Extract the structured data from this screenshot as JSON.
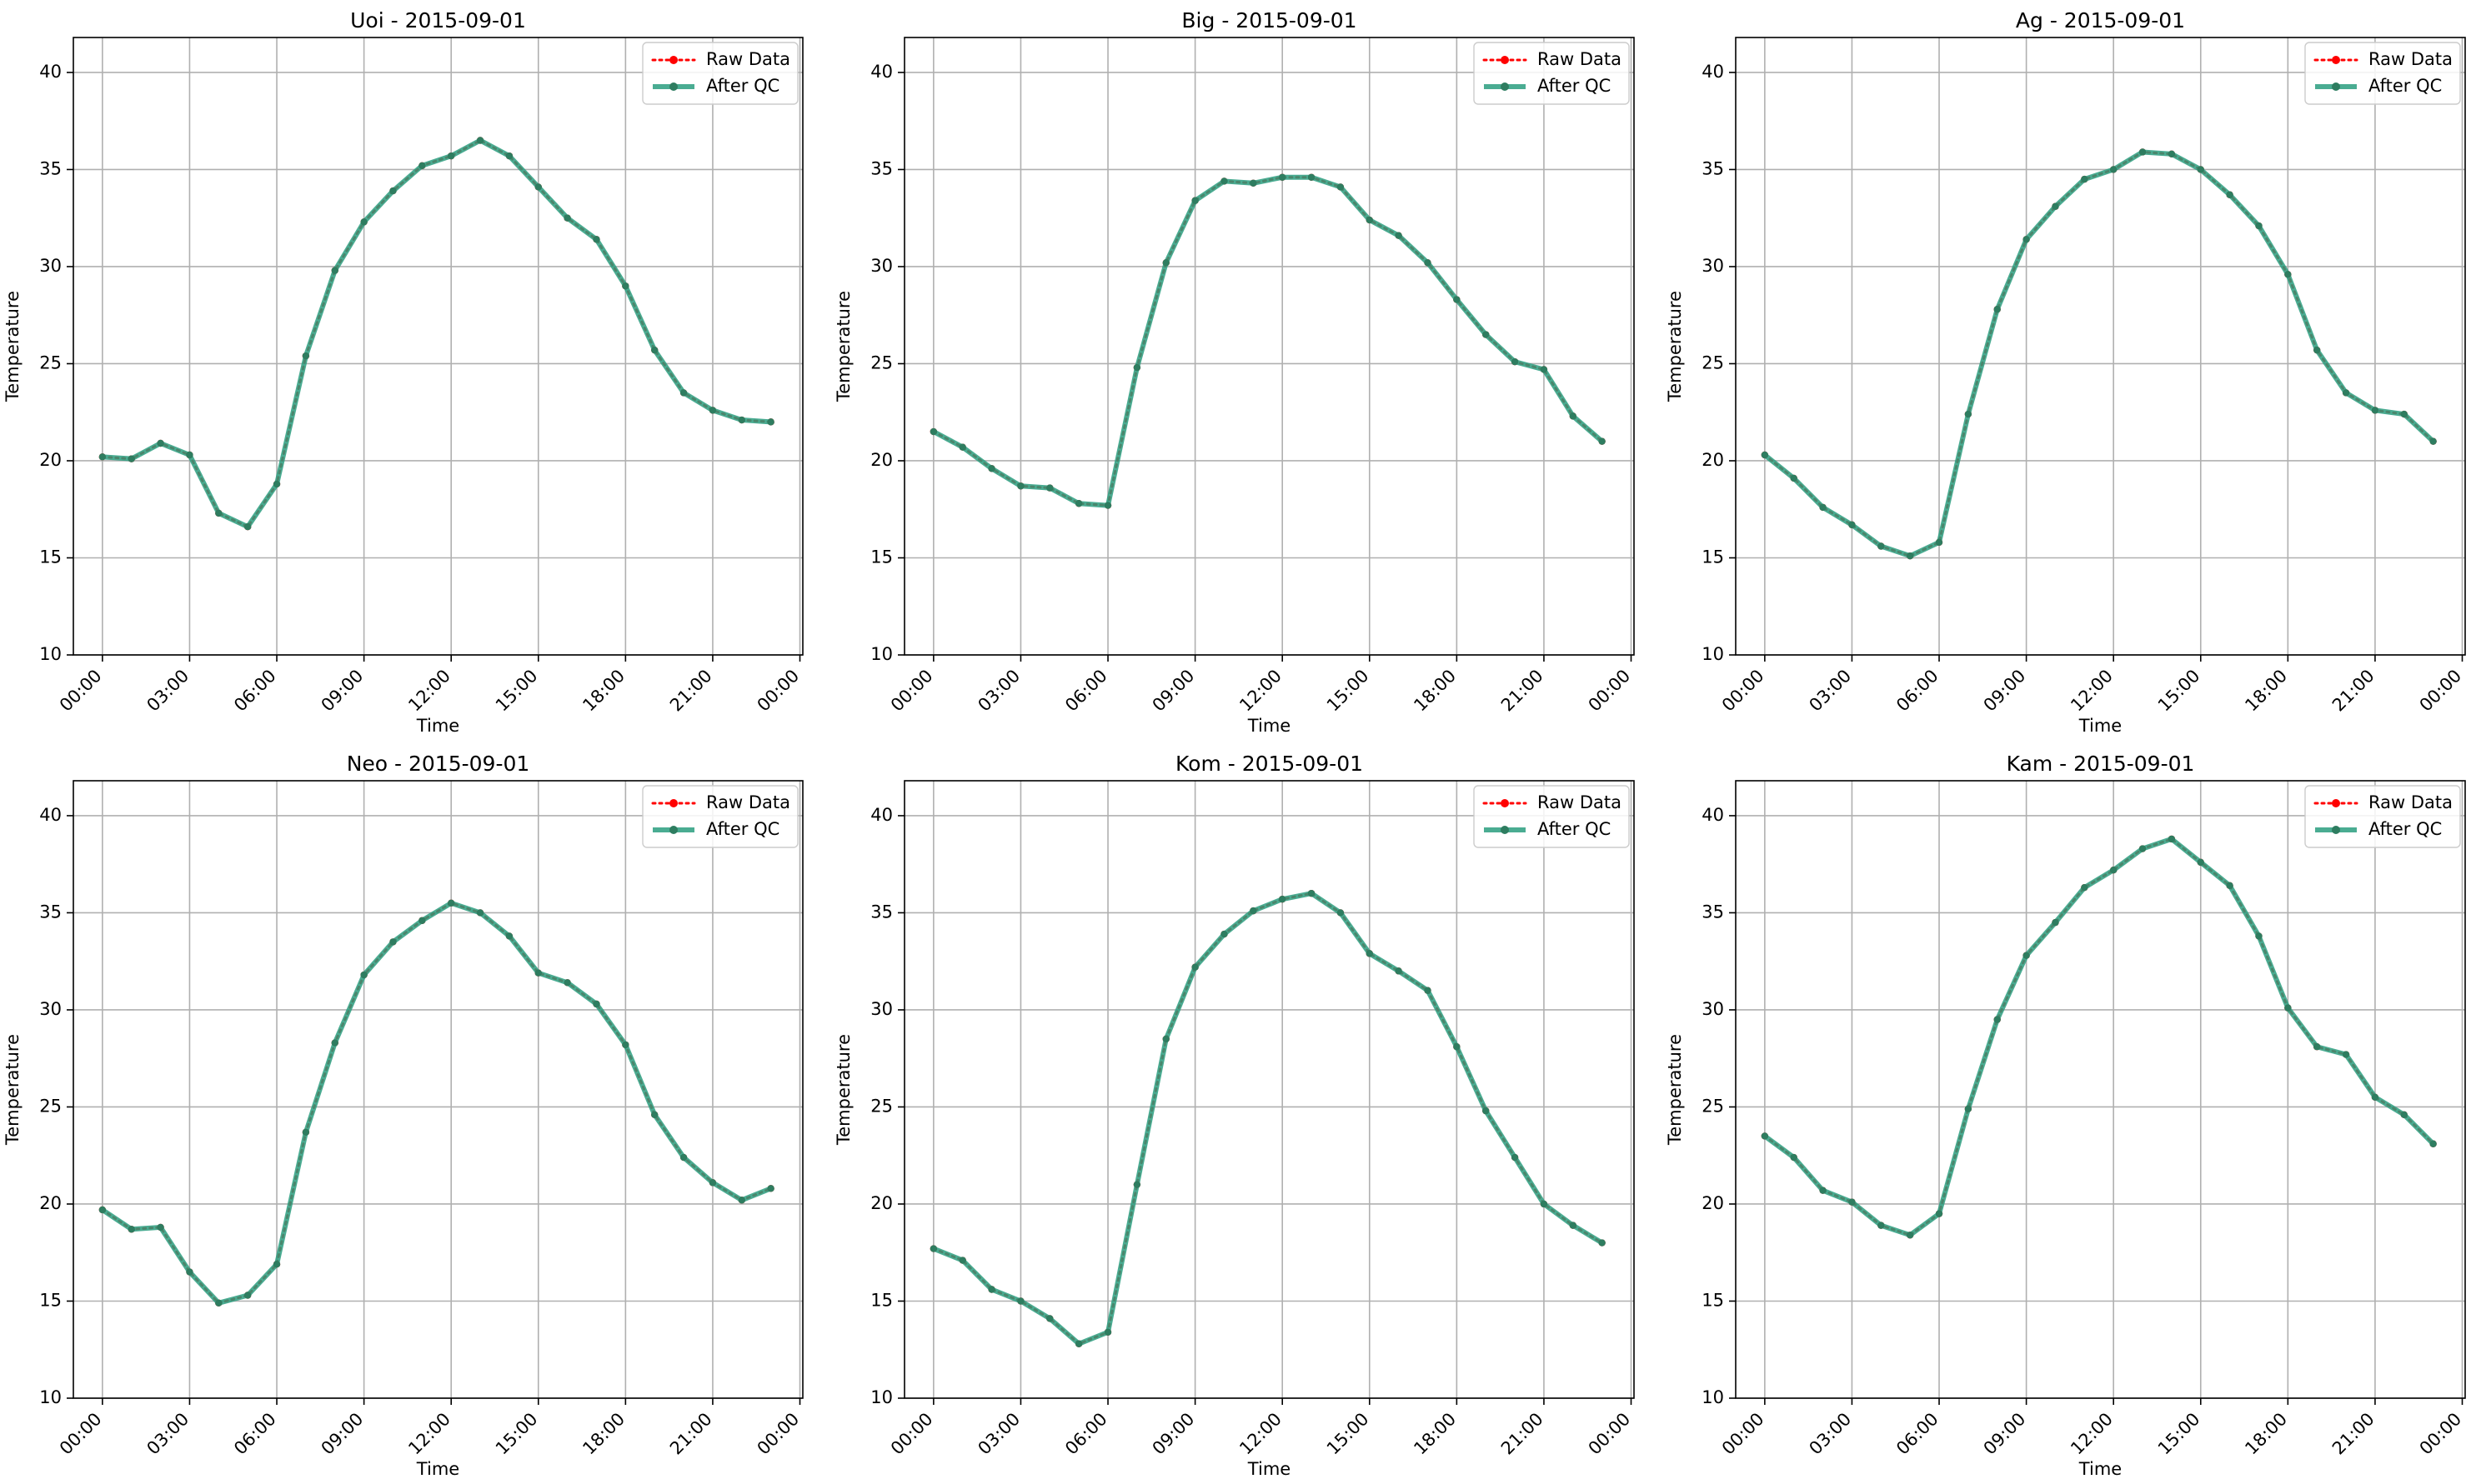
{
  "legend": {
    "raw_label": "Raw Data",
    "qc_label": "After QC"
  },
  "colors": {
    "raw": "#ff0000",
    "qc": "#2a9d7f",
    "qc_marker": "#2e7d60",
    "grid": "#b0b0b0",
    "axes": "#000000"
  },
  "chart_data": [
    {
      "type": "line",
      "title": "Uoi - 2015-09-01",
      "xlabel": "Time",
      "ylabel": "Temperature",
      "ylim": [
        10,
        41.8
      ],
      "yticks": [
        10,
        15,
        20,
        25,
        30,
        35,
        40
      ],
      "xlim": [
        -1,
        24.1
      ],
      "x": [
        0,
        1,
        2,
        3,
        4,
        5,
        6,
        7,
        8,
        9,
        10,
        11,
        12,
        13,
        14,
        15,
        16,
        17,
        18,
        19,
        20,
        21,
        22,
        23
      ],
      "xticks": [
        0,
        3,
        6,
        9,
        12,
        15,
        18,
        21,
        24
      ],
      "xticklabels": [
        "00:00",
        "03:00",
        "06:00",
        "09:00",
        "12:00",
        "15:00",
        "18:00",
        "21:00",
        "00:00"
      ],
      "grid": true,
      "legend_position": "top-right",
      "series": [
        {
          "name": "Raw Data",
          "values": [
            20.2,
            20.1,
            20.9,
            20.3,
            17.3,
            16.6,
            18.8,
            25.4,
            29.8,
            32.3,
            33.9,
            35.2,
            35.7,
            36.5,
            35.7,
            34.1,
            32.5,
            31.4,
            29.0,
            25.7,
            23.5,
            22.6,
            22.1,
            22.0
          ]
        },
        {
          "name": "After QC",
          "values": [
            20.2,
            20.1,
            20.9,
            20.3,
            17.3,
            16.6,
            18.8,
            25.4,
            29.8,
            32.3,
            33.9,
            35.2,
            35.7,
            36.5,
            35.7,
            34.1,
            32.5,
            31.4,
            29.0,
            25.7,
            23.5,
            22.6,
            22.1,
            22.0
          ]
        }
      ]
    },
    {
      "type": "line",
      "title": "Big - 2015-09-01",
      "xlabel": "Time",
      "ylabel": "Temperature",
      "ylim": [
        10,
        41.8
      ],
      "yticks": [
        10,
        15,
        20,
        25,
        30,
        35,
        40
      ],
      "xlim": [
        -1,
        24.1
      ],
      "x": [
        0,
        1,
        2,
        3,
        4,
        5,
        6,
        7,
        8,
        9,
        10,
        11,
        12,
        13,
        14,
        15,
        16,
        17,
        18,
        19,
        20,
        21,
        22,
        23
      ],
      "xticks": [
        0,
        3,
        6,
        9,
        12,
        15,
        18,
        21,
        24
      ],
      "xticklabels": [
        "00:00",
        "03:00",
        "06:00",
        "09:00",
        "12:00",
        "15:00",
        "18:00",
        "21:00",
        "00:00"
      ],
      "grid": true,
      "legend_position": "top-right",
      "series": [
        {
          "name": "Raw Data",
          "values": [
            21.5,
            20.7,
            19.6,
            18.7,
            18.6,
            17.8,
            17.7,
            24.8,
            30.2,
            33.4,
            34.4,
            34.3,
            34.6,
            34.6,
            34.1,
            32.4,
            31.6,
            30.2,
            28.3,
            26.5,
            25.1,
            24.7,
            22.3,
            21.0
          ]
        },
        {
          "name": "After QC",
          "values": [
            21.5,
            20.7,
            19.6,
            18.7,
            18.6,
            17.8,
            17.7,
            24.8,
            30.2,
            33.4,
            34.4,
            34.3,
            34.6,
            34.6,
            34.1,
            32.4,
            31.6,
            30.2,
            28.3,
            26.5,
            25.1,
            24.7,
            22.3,
            21.0
          ]
        }
      ]
    },
    {
      "type": "line",
      "title": "Ag - 2015-09-01",
      "xlabel": "Time",
      "ylabel": "Temperature",
      "ylim": [
        10,
        41.8
      ],
      "yticks": [
        10,
        15,
        20,
        25,
        30,
        35,
        40
      ],
      "xlim": [
        -1,
        24.1
      ],
      "x": [
        0,
        1,
        2,
        3,
        4,
        5,
        6,
        7,
        8,
        9,
        10,
        11,
        12,
        13,
        14,
        15,
        16,
        17,
        18,
        19,
        20,
        21,
        22,
        23
      ],
      "xticks": [
        0,
        3,
        6,
        9,
        12,
        15,
        18,
        21,
        24
      ],
      "xticklabels": [
        "00:00",
        "03:00",
        "06:00",
        "09:00",
        "12:00",
        "15:00",
        "18:00",
        "21:00",
        "00:00"
      ],
      "grid": true,
      "legend_position": "top-right",
      "series": [
        {
          "name": "Raw Data",
          "values": [
            20.3,
            19.1,
            17.6,
            16.7,
            15.6,
            15.1,
            15.8,
            22.4,
            27.8,
            31.4,
            33.1,
            34.5,
            35.0,
            35.9,
            35.8,
            35.0,
            33.7,
            32.1,
            29.6,
            25.7,
            23.5,
            22.6,
            22.4,
            21.0
          ]
        },
        {
          "name": "After QC",
          "values": [
            20.3,
            19.1,
            17.6,
            16.7,
            15.6,
            15.1,
            15.8,
            22.4,
            27.8,
            31.4,
            33.1,
            34.5,
            35.0,
            35.9,
            35.8,
            35.0,
            33.7,
            32.1,
            29.6,
            25.7,
            23.5,
            22.6,
            22.4,
            21.0
          ]
        }
      ]
    },
    {
      "type": "line",
      "title": "Neo - 2015-09-01",
      "xlabel": "Time",
      "ylabel": "Temperature",
      "ylim": [
        10,
        41.8
      ],
      "yticks": [
        10,
        15,
        20,
        25,
        30,
        35,
        40
      ],
      "xlim": [
        -1,
        24.1
      ],
      "x": [
        0,
        1,
        2,
        3,
        4,
        5,
        6,
        7,
        8,
        9,
        10,
        11,
        12,
        13,
        14,
        15,
        16,
        17,
        18,
        19,
        20,
        21,
        22,
        23
      ],
      "xticks": [
        0,
        3,
        6,
        9,
        12,
        15,
        18,
        21,
        24
      ],
      "xticklabels": [
        "00:00",
        "03:00",
        "06:00",
        "09:00",
        "12:00",
        "15:00",
        "18:00",
        "21:00",
        "00:00"
      ],
      "grid": true,
      "legend_position": "top-right",
      "series": [
        {
          "name": "Raw Data",
          "values": [
            19.7,
            18.7,
            18.8,
            16.5,
            14.9,
            15.3,
            16.9,
            23.7,
            28.3,
            31.8,
            33.5,
            34.6,
            35.5,
            35.0,
            33.8,
            31.9,
            31.4,
            30.3,
            28.2,
            24.6,
            22.4,
            21.1,
            20.2,
            20.8
          ]
        },
        {
          "name": "After QC",
          "values": [
            19.7,
            18.7,
            18.8,
            16.5,
            14.9,
            15.3,
            16.9,
            23.7,
            28.3,
            31.8,
            33.5,
            34.6,
            35.5,
            35.0,
            33.8,
            31.9,
            31.4,
            30.3,
            28.2,
            24.6,
            22.4,
            21.1,
            20.2,
            20.8
          ]
        }
      ]
    },
    {
      "type": "line",
      "title": "Kom - 2015-09-01",
      "xlabel": "Time",
      "ylabel": "Temperature",
      "ylim": [
        10,
        41.8
      ],
      "yticks": [
        10,
        15,
        20,
        25,
        30,
        35,
        40
      ],
      "xlim": [
        -1,
        24.1
      ],
      "x": [
        0,
        1,
        2,
        3,
        4,
        5,
        6,
        7,
        8,
        9,
        10,
        11,
        12,
        13,
        14,
        15,
        16,
        17,
        18,
        19,
        20,
        21,
        22,
        23
      ],
      "xticks": [
        0,
        3,
        6,
        9,
        12,
        15,
        18,
        21,
        24
      ],
      "xticklabels": [
        "00:00",
        "03:00",
        "06:00",
        "09:00",
        "12:00",
        "15:00",
        "18:00",
        "21:00",
        "00:00"
      ],
      "grid": true,
      "legend_position": "top-right",
      "series": [
        {
          "name": "Raw Data",
          "values": [
            17.7,
            17.1,
            15.6,
            15.0,
            14.1,
            12.8,
            13.4,
            21.0,
            28.5,
            32.2,
            33.9,
            35.1,
            35.7,
            36.0,
            35.0,
            32.9,
            32.0,
            31.0,
            28.1,
            24.8,
            22.4,
            20.0,
            18.9,
            18.0
          ]
        },
        {
          "name": "After QC",
          "values": [
            17.7,
            17.1,
            15.6,
            15.0,
            14.1,
            12.8,
            13.4,
            21.0,
            28.5,
            32.2,
            33.9,
            35.1,
            35.7,
            36.0,
            35.0,
            32.9,
            32.0,
            31.0,
            28.1,
            24.8,
            22.4,
            20.0,
            18.9,
            18.0
          ]
        }
      ]
    },
    {
      "type": "line",
      "title": "Kam - 2015-09-01",
      "xlabel": "Time",
      "ylabel": "Temperature",
      "ylim": [
        10,
        41.8
      ],
      "yticks": [
        10,
        15,
        20,
        25,
        30,
        35,
        40
      ],
      "xlim": [
        -1,
        24.1
      ],
      "x": [
        0,
        1,
        2,
        3,
        4,
        5,
        6,
        7,
        8,
        9,
        10,
        11,
        12,
        13,
        14,
        15,
        16,
        17,
        18,
        19,
        20,
        21,
        22,
        23
      ],
      "xticks": [
        0,
        3,
        6,
        9,
        12,
        15,
        18,
        21,
        24
      ],
      "xticklabels": [
        "00:00",
        "03:00",
        "06:00",
        "09:00",
        "12:00",
        "15:00",
        "18:00",
        "21:00",
        "00:00"
      ],
      "grid": true,
      "legend_position": "top-right",
      "series": [
        {
          "name": "Raw Data",
          "values": [
            23.5,
            22.4,
            20.7,
            20.1,
            18.9,
            18.4,
            19.5,
            24.9,
            29.5,
            32.8,
            34.5,
            36.3,
            37.2,
            38.3,
            38.8,
            37.6,
            36.4,
            33.8,
            30.1,
            28.1,
            27.7,
            25.5,
            24.6,
            23.1
          ]
        },
        {
          "name": "After QC",
          "values": [
            23.5,
            22.4,
            20.7,
            20.1,
            18.9,
            18.4,
            19.5,
            24.9,
            29.5,
            32.8,
            34.5,
            36.3,
            37.2,
            38.3,
            38.8,
            37.6,
            36.4,
            33.8,
            30.1,
            28.1,
            27.7,
            25.5,
            24.6,
            23.1
          ]
        }
      ]
    }
  ]
}
